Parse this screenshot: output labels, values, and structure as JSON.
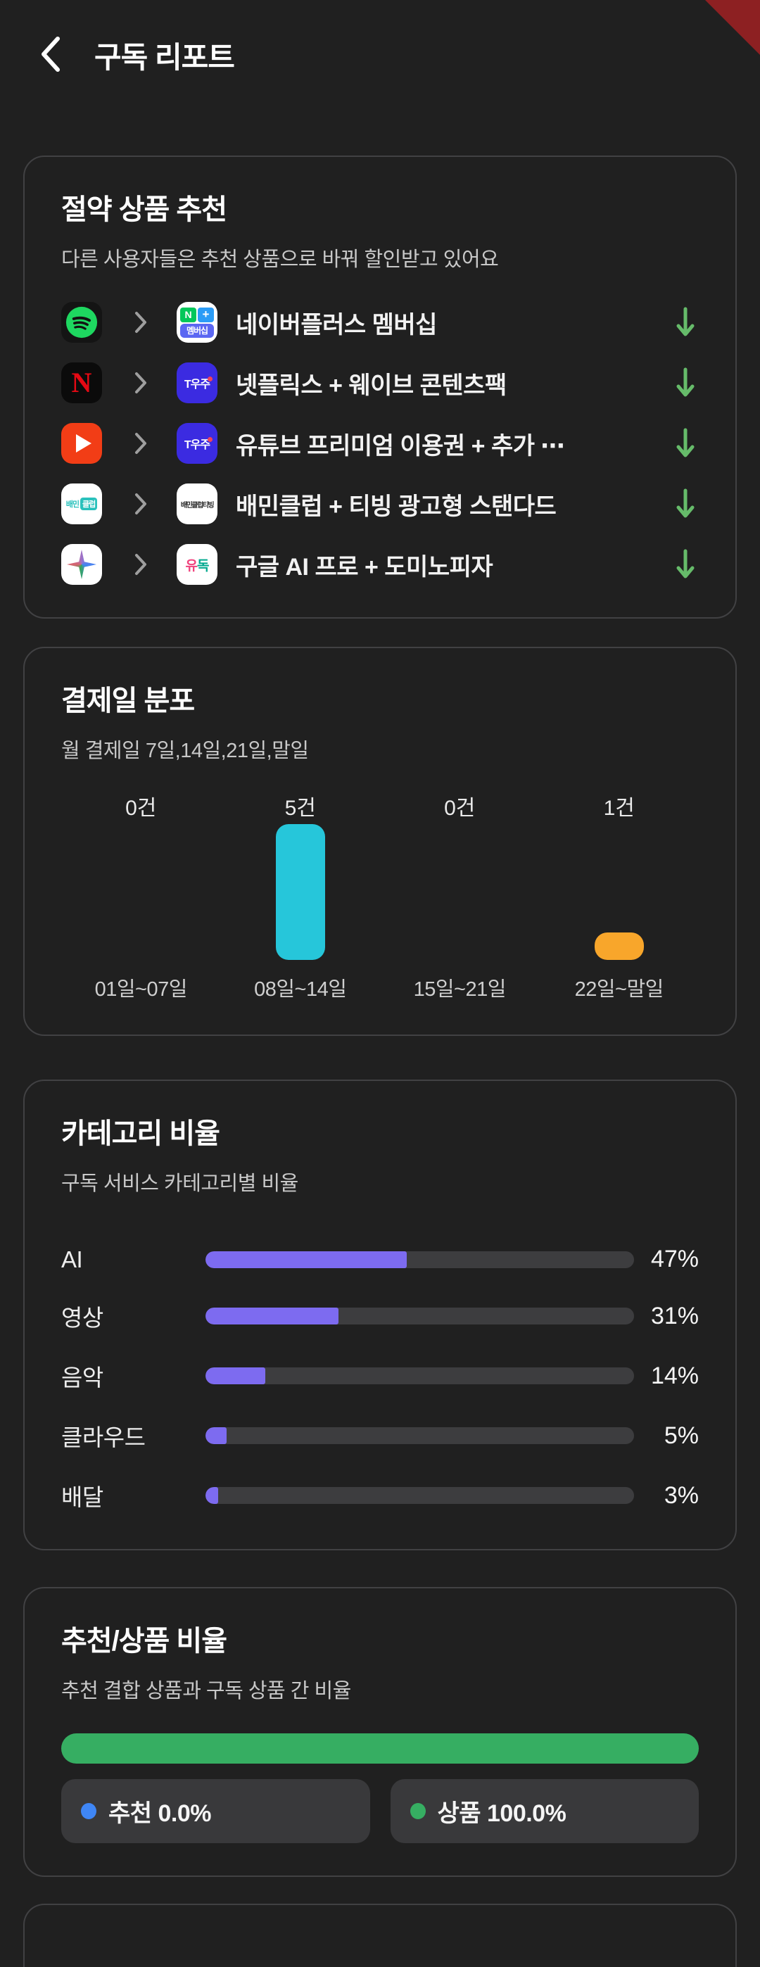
{
  "app": {
    "title": "구독 리포트"
  },
  "colors": {
    "background": "#202020",
    "card_border": "#414143",
    "debug_corner_red": "#8D2022",
    "arrow_green": "#66BB6A",
    "bar_cyan": "#26C6DA",
    "bar_orange": "#F8A62B",
    "bar_purple": "#7D6BF0",
    "ratio_green": "#36AE62",
    "dot_blue": "#3F86F5"
  },
  "savings_card": {
    "title": "절약 상품 추천",
    "subtitle": "다른 사용자들은 추천 상품으로 바꿔 할인받고 있어요",
    "rows": [
      {
        "label": "네이버플러스 멤버십",
        "from_icon": "spotify",
        "to_icon": "naver-plus-membership",
        "to_icon_text": {
          "n": "N",
          "plus": "+",
          "member": "멤버십"
        }
      },
      {
        "label": "넷플릭스 + 웨이브 콘텐츠팩",
        "from_icon": "netflix",
        "to_icon": "t-universe",
        "to_icon_text": {
          "t": "T우주"
        }
      },
      {
        "label": "유튜브 프리미엄 이용권 + 추가 ⋯",
        "from_icon": "youtube",
        "to_icon": "t-universe",
        "to_icon_text": {
          "t": "T우주"
        }
      },
      {
        "label": "배민클럽 + 티빙 광고형 스탠다드",
        "from_icon": "baemin-club",
        "to_icon": "partner-logo",
        "from_icon_text": {
          "bae": "배민",
          "club": "클럽"
        },
        "to_icon_text": {
          "text": "배민클럽티빙"
        }
      },
      {
        "label": "구글 AI 프로 + 도미노피자",
        "from_icon": "gemini",
        "to_icon": "yudok",
        "to_icon_text": {
          "yu": "유",
          "dok": "독"
        }
      }
    ]
  },
  "payment_card": {
    "title": "결제일 분포",
    "subtitle": "월 결제일 7일,14일,21일,말일",
    "columns": [
      {
        "count_label": "0건",
        "range_label": "01일~07일",
        "value": 0,
        "color": ""
      },
      {
        "count_label": "5건",
        "range_label": "08일~14일",
        "value": 5,
        "color": "#26C6DA"
      },
      {
        "count_label": "0건",
        "range_label": "15일~21일",
        "value": 0,
        "color": ""
      },
      {
        "count_label": "1건",
        "range_label": "22일~말일",
        "value": 1,
        "color": "#F8A62B"
      }
    ]
  },
  "category_card": {
    "title": "카테고리 비율",
    "subtitle": "구독 서비스 카테고리별 비율",
    "bar_color": "#7D6BF0",
    "rows": [
      {
        "label": "AI",
        "pct": 47,
        "pct_label": "47%"
      },
      {
        "label": "영상",
        "pct": 31,
        "pct_label": "31%"
      },
      {
        "label": "음악",
        "pct": 14,
        "pct_label": "14%"
      },
      {
        "label": "클라우드",
        "pct": 5,
        "pct_label": "5%"
      },
      {
        "label": "배달",
        "pct": 3,
        "pct_label": "3%"
      }
    ]
  },
  "ratio_card": {
    "title": "추천/상품 비율",
    "subtitle": "추천 결합 상품과 구독 상품 간 비율",
    "legend": [
      {
        "label": "추천 0.0%",
        "pct": 0,
        "dot_color": "#3F86F5"
      },
      {
        "label": "상품 100.0%",
        "pct": 100,
        "dot_color": "#36AE62"
      }
    ]
  },
  "chart_data": [
    {
      "type": "bar",
      "title": "결제일 분포",
      "subtitle": "월 결제일 7일,14일,21일,말일",
      "categories": [
        "01일~07일",
        "08일~14일",
        "15일~21일",
        "22일~말일"
      ],
      "values": [
        0,
        5,
        0,
        1
      ],
      "value_labels": [
        "0건",
        "5건",
        "0건",
        "1건"
      ],
      "bar_colors": [
        "none",
        "#26C6DA",
        "none",
        "#F8A62B"
      ],
      "ylim": [
        0,
        5
      ],
      "grid": false,
      "legend_position": "none"
    },
    {
      "type": "bar",
      "orientation": "horizontal",
      "title": "카테고리 비율",
      "subtitle": "구독 서비스 카테고리별 비율",
      "categories": [
        "AI",
        "영상",
        "음악",
        "클라우드",
        "배달"
      ],
      "values": [
        47,
        31,
        14,
        5,
        3
      ],
      "value_labels": [
        "47%",
        "31%",
        "14%",
        "5%",
        "3%"
      ],
      "bar_color": "#7D6BF0",
      "xlim": [
        0,
        100
      ],
      "grid": false
    },
    {
      "type": "bar",
      "orientation": "horizontal-stacked",
      "title": "추천/상품 비율",
      "subtitle": "추천 결합 상품과 구독 상품 간 비율",
      "series": [
        {
          "name": "추천",
          "values": [
            0.0
          ],
          "color": "#3F86F5"
        },
        {
          "name": "상품",
          "values": [
            100.0
          ],
          "color": "#36AE62"
        }
      ],
      "xlim": [
        0,
        100
      ],
      "legend_position": "bottom"
    }
  ]
}
